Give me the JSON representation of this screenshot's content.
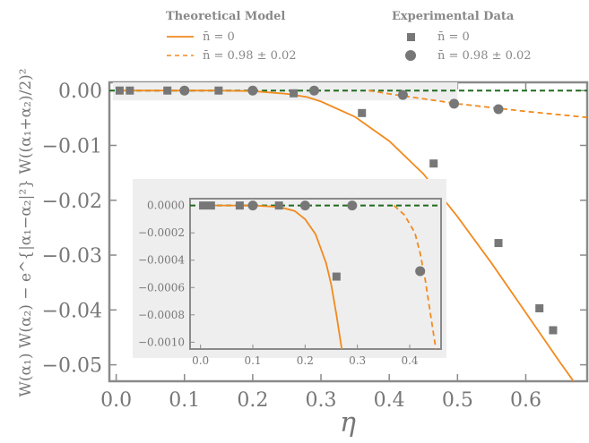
{
  "chart_data": {
    "type": "scatter",
    "xlabel": "η",
    "ylabel": "W(α₁) W(α₂) − e^{|α₁−α₂|²} W((α₁+α₂)/2)²",
    "xlim": [
      -0.01,
      0.69
    ],
    "ylim": [
      -0.053,
      0.0015
    ],
    "xticks": [
      "0.0",
      "0.1",
      "0.2",
      "0.3",
      "0.4",
      "0.5",
      "0.6"
    ],
    "yticks": [
      "0.00",
      "−0.01",
      "−0.02",
      "−0.03",
      "−0.04",
      "−0.05"
    ],
    "legend": {
      "placement": "top",
      "theory_title": "Theoretical Model",
      "experiment_title": "Experimental Data",
      "entries": {
        "theory_n0": "n̄ = 0",
        "theory_n098": "n̄ = 0.98 ± 0.02",
        "exp_n0": "n̄ = 0",
        "exp_n098": "n̄ = 0.98 ± 0.02"
      }
    },
    "series": [
      {
        "key": "theory_n0",
        "kind": "line",
        "color": "#f28a1e",
        "dash": "solid",
        "x": [
          0.0,
          0.05,
          0.1,
          0.15,
          0.2,
          0.25,
          0.28,
          0.3,
          0.35,
          0.4,
          0.45,
          0.5,
          0.55,
          0.6,
          0.65,
          0.67
        ],
        "y": [
          0.0,
          0.0,
          0.0,
          0.0,
          -0.0001,
          -0.0006,
          -0.0012,
          -0.002,
          -0.0048,
          -0.0092,
          -0.0152,
          -0.023,
          -0.0315,
          -0.0405,
          -0.0495,
          -0.053
        ]
      },
      {
        "key": "theory_n098",
        "kind": "line",
        "color": "#f28a1e",
        "dash": "dashed",
        "x": [
          0.37,
          0.4,
          0.45,
          0.5,
          0.55,
          0.6,
          0.65,
          0.69
        ],
        "y": [
          0.0,
          -0.0006,
          -0.0015,
          -0.0024,
          -0.0031,
          -0.0038,
          -0.0044,
          -0.0049
        ]
      },
      {
        "key": "exp_n0",
        "kind": "marker",
        "marker": "square",
        "color": "#777777",
        "x": [
          0.005,
          0.02,
          0.075,
          0.15,
          0.26,
          0.36,
          0.465,
          0.56,
          0.62,
          0.64
        ],
        "y": [
          0.0,
          0.0,
          0.0,
          0.0,
          -0.0005,
          -0.0041,
          -0.0133,
          -0.0278,
          -0.0397,
          -0.0437
        ]
      },
      {
        "key": "exp_n098",
        "kind": "marker",
        "marker": "circle",
        "color": "#777777",
        "x": [
          0.1,
          0.2,
          0.29,
          0.42,
          0.495,
          0.56
        ],
        "y": [
          0.0,
          0.0,
          0.0,
          -0.0008,
          -0.0024,
          -0.0034
        ]
      }
    ],
    "reference_line": {
      "y": 0.0,
      "color": "#1e6b1e",
      "dash": "dashed"
    },
    "inset": {
      "xlim": [
        -0.02,
        0.46
      ],
      "ylim": [
        -0.00105,
        5e-05
      ],
      "xticks": [
        "0.0",
        "0.1",
        "0.2",
        "0.3",
        "0.4"
      ],
      "yticks": [
        "0.0000",
        "−0.0002",
        "−0.0004",
        "−0.0006",
        "−0.0008",
        "−0.0010"
      ],
      "series": [
        {
          "key": "theory_n0",
          "kind": "line",
          "color": "#f28a1e",
          "dash": "solid",
          "x": [
            0.0,
            0.1,
            0.15,
            0.18,
            0.2,
            0.22,
            0.24,
            0.25,
            0.26,
            0.27
          ],
          "y": [
            0.0,
            0.0,
            -1e-05,
            -4e-05,
            -0.0001,
            -0.00021,
            -0.00042,
            -0.00058,
            -0.0008,
            -0.00105
          ]
        },
        {
          "key": "theory_n098",
          "kind": "line",
          "color": "#f28a1e",
          "dash": "dashed",
          "x": [
            0.37,
            0.39,
            0.41,
            0.42,
            0.43,
            0.44,
            0.45
          ],
          "y": [
            0.0,
            -7e-05,
            -0.0002,
            -0.00035,
            -0.00055,
            -0.0008,
            -0.00105
          ]
        },
        {
          "key": "exp_n0",
          "kind": "marker",
          "marker": "square",
          "color": "#777777",
          "x": [
            0.005,
            0.02,
            0.075,
            0.15,
            0.26
          ],
          "y": [
            0.0,
            0.0,
            0.0,
            0.0,
            -0.00052
          ]
        },
        {
          "key": "exp_n098",
          "kind": "marker",
          "marker": "circle",
          "color": "#777777",
          "x": [
            0.1,
            0.2,
            0.29,
            0.42
          ],
          "y": [
            0.0,
            0.0,
            0.0,
            -0.00048
          ]
        }
      ]
    }
  }
}
